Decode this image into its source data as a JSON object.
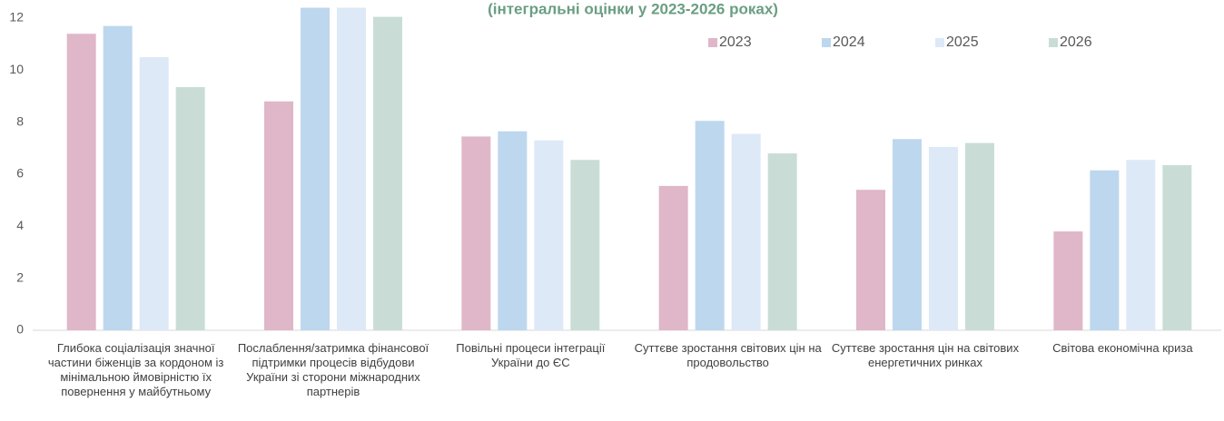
{
  "chart_data": {
    "type": "bar",
    "subtitle": "(інтегральні оцінки у 2023-2026 роках)",
    "categories": [
      "Глибока соціалізація значної частини біженців за кордоном із мінімальною ймовірністю їх повернення у майбутньому",
      "Послаблення/затримка фінансової підтримки процесів відбудови України зі сторони міжнародних партнерів",
      "Повільні процеси інтеграції України до ЄС",
      "Суттєве зростання світових цін на продовольство",
      "Суттєве зростання цін на світових енергетичних ринках",
      "Світова економічна криза"
    ],
    "series": [
      {
        "name": "2023",
        "color": "#dfb7c9",
        "values": [
          11.4,
          8.8,
          7.45,
          5.55,
          5.4,
          3.8
        ]
      },
      {
        "name": "2024",
        "color": "#bdd7ee",
        "values": [
          11.7,
          12.4,
          7.65,
          8.05,
          7.35,
          6.15
        ]
      },
      {
        "name": "2025",
        "color": "#dde9f7",
        "values": [
          10.5,
          12.4,
          7.3,
          7.55,
          7.05,
          6.55
        ]
      },
      {
        "name": "2026",
        "color": "#c9ddd6",
        "values": [
          9.35,
          12.05,
          6.55,
          6.8,
          7.2,
          6.35
        ]
      }
    ],
    "ylim": [
      0,
      12
    ],
    "yticks": [
      0,
      2,
      4,
      6,
      8,
      10,
      12
    ],
    "grid": false,
    "legend": "top-right"
  }
}
